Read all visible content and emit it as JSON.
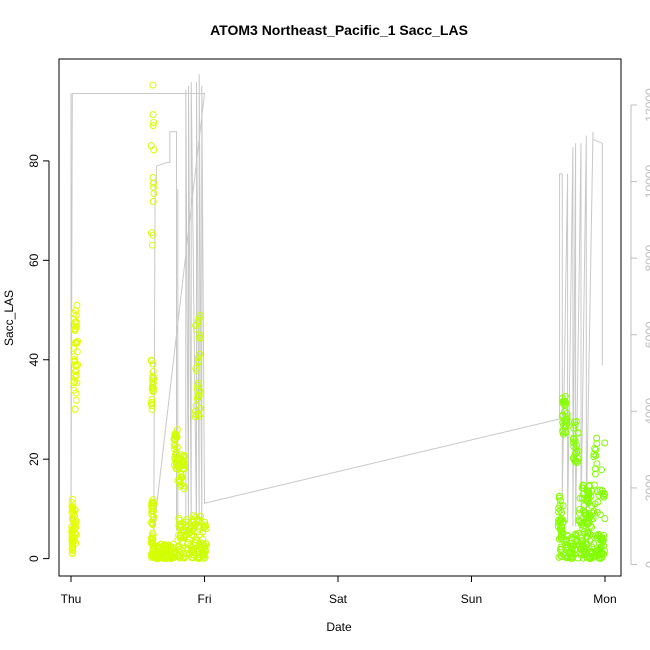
{
  "chart_data": {
    "type": "scatter",
    "title": "ATOM3 Northeast_Pacific_1 Sacc_LAS",
    "xlabel": "Date",
    "ylabel": "Sacc_LAS",
    "x_ticks": [
      "Thu",
      "Fri",
      "Sat",
      "Sun",
      "Mon"
    ],
    "x_tick_days": [
      0,
      1,
      2,
      3,
      4
    ],
    "xlim_days": [
      -0.09,
      4.12
    ],
    "ylim": [
      -3.5,
      100.5
    ],
    "y_ticks": [
      0,
      20,
      40,
      60,
      80
    ],
    "y2lim": [
      -300,
      13200
    ],
    "y2_ticks": [
      0,
      2000,
      4000,
      6000,
      8000,
      10000,
      12000
    ],
    "colors": {
      "points_early": "#e5ff00",
      "points_late": "#80ff00",
      "line": "#c8c8c8",
      "right_axis": "#bebebe"
    },
    "series": [
      {
        "kind": "points",
        "axis": "left",
        "color_gradient": [
          "#e5ff00",
          "#80ff00"
        ],
        "clusters": [
          {
            "x": [
              0.005,
              0.015
            ],
            "y": [
              1,
              12
            ],
            "n": 40
          },
          {
            "x": [
              0.02,
              0.05
            ],
            "y": [
              30,
              51
            ],
            "n": 40
          },
          {
            "x": [
              0.02,
              0.04
            ],
            "y": [
              3,
              10
            ],
            "n": 20
          },
          {
            "x": [
              0.6,
              0.62
            ],
            "y": [
              0,
              12
            ],
            "n": 40
          },
          {
            "x": [
              0.6,
              0.62
            ],
            "y": [
              30,
              40
            ],
            "n": 20
          },
          {
            "x": [
              0.6,
              0.62
            ],
            "y": [
              62,
              96
            ],
            "n": 14
          },
          {
            "x": [
              0.62,
              0.78
            ],
            "y": [
              0,
              3
            ],
            "n": 80
          },
          {
            "x": [
              0.77,
              0.8
            ],
            "y": [
              18,
              26
            ],
            "n": 30
          },
          {
            "x": [
              0.8,
              0.85
            ],
            "y": [
              14,
              21
            ],
            "n": 30
          },
          {
            "x": [
              0.8,
              1.02
            ],
            "y": [
              0,
              9
            ],
            "n": 120
          },
          {
            "x": [
              0.93,
              0.97
            ],
            "y": [
              28,
              50
            ],
            "n": 30
          },
          {
            "x": [
              3.65,
              3.69
            ],
            "y": [
              0,
              13
            ],
            "n": 40
          },
          {
            "x": [
              3.68,
              3.72
            ],
            "y": [
              25,
              33
            ],
            "n": 30
          },
          {
            "x": [
              3.7,
              4.0
            ],
            "y": [
              0,
              5
            ],
            "n": 120
          },
          {
            "x": [
              3.76,
              3.8
            ],
            "y": [
              19,
              28
            ],
            "n": 25
          },
          {
            "x": [
              3.8,
              3.9
            ],
            "y": [
              5,
              16
            ],
            "n": 60
          },
          {
            "x": [
              3.9,
              4.0
            ],
            "y": [
              8,
              26
            ],
            "n": 30
          }
        ]
      },
      {
        "kind": "line",
        "axis": "right",
        "x": [
          0.0,
          0.0,
          0.01,
          0.01,
          1.0,
          1.0,
          0.62,
          0.63,
          0.64,
          0.64,
          0.72,
          0.74,
          0.74,
          0.79,
          0.79,
          0.8,
          0.8,
          0.8,
          0.86,
          0.86,
          0.88,
          0.88,
          0.9,
          0.9,
          0.94,
          0.94,
          0.96,
          0.96,
          0.98,
          0.98,
          1.0,
          1.0,
          3.66,
          3.66,
          3.68,
          3.68,
          3.72,
          3.72,
          3.76,
          3.76,
          3.78,
          3.78,
          3.82,
          3.82,
          3.86,
          3.86,
          3.91,
          3.91,
          3.98,
          3.98
        ],
        "y": [
          12300,
          800,
          12300,
          12300,
          12300,
          12300,
          900,
          10000,
          10000,
          10400,
          10500,
          10500,
          11300,
          11300,
          900,
          900,
          9800,
          900,
          900,
          12400,
          800,
          12500,
          900,
          12600,
          900,
          12600,
          1000,
          12800,
          900,
          12500,
          1600,
          1600,
          3800,
          10200,
          10200,
          1800,
          10200,
          1100,
          10900,
          1000,
          11000,
          1000,
          11000,
          1200,
          11200,
          1200,
          11300,
          11100,
          11000,
          5200
        ]
      }
    ]
  }
}
